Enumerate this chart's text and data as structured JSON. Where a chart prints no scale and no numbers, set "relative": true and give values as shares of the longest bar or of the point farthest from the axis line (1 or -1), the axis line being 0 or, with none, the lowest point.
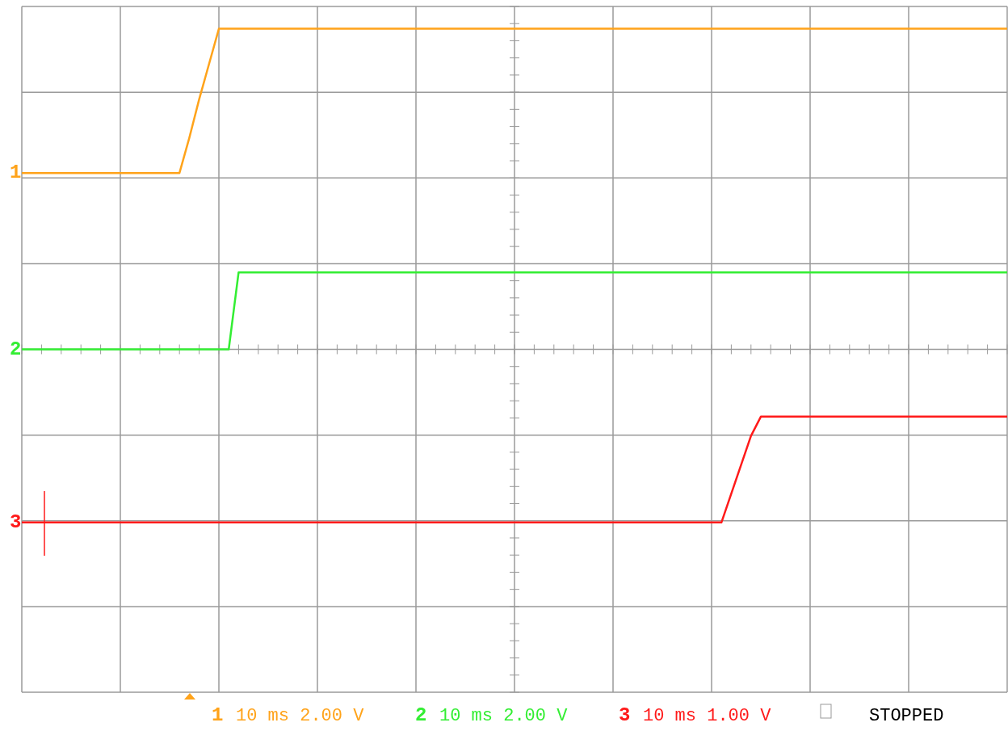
{
  "chart_data": {
    "type": "line",
    "relative": true,
    "grid": true,
    "categories": [
      null,
      null,
      null,
      null,
      null,
      null,
      null,
      null,
      null,
      null,
      null,
      null,
      null,
      null,
      null,
      null,
      null,
      null,
      null,
      null,
      null,
      null,
      null,
      null,
      null,
      null,
      null,
      null,
      null,
      null,
      null,
      null,
      null,
      null,
      null,
      null,
      null,
      null,
      null,
      null,
      null,
      null,
      null,
      null,
      null,
      null,
      null,
      null,
      null,
      null,
      null,
      null,
      null,
      null,
      null,
      null,
      null,
      null,
      null,
      null,
      null,
      null,
      null,
      null,
      null,
      null,
      null,
      null,
      null,
      null,
      null,
      null,
      null,
      null,
      null,
      null,
      null,
      null,
      null,
      null,
      null,
      null,
      null,
      null,
      null,
      null,
      null,
      null,
      null,
      null,
      null,
      null,
      null,
      null,
      null,
      null,
      null,
      null,
      null,
      null,
      null
    ],
    "series": [
      {
        "name": "1",
        "color": "#ffa31a",
        "values": [
          0.55,
          0.55,
          0.55,
          0.55,
          0.55,
          0.55,
          0.55,
          0.55,
          0.55,
          0.55,
          0.55,
          0.55,
          0.55,
          0.55,
          0.55,
          0.55,
          0.55,
          0.66,
          0.78,
          0.89,
          1,
          1,
          1,
          1,
          1,
          1,
          1,
          1,
          1,
          1,
          1,
          1,
          1,
          1,
          1,
          1,
          1,
          1,
          1,
          1,
          1,
          1,
          1,
          1,
          1,
          1,
          1,
          1,
          1,
          1,
          1,
          1,
          1,
          1,
          1,
          1,
          1,
          1,
          1,
          1,
          1,
          1,
          1,
          1,
          1,
          1,
          1,
          1,
          1,
          1,
          1,
          1,
          1,
          1,
          1,
          1,
          1,
          1,
          1,
          1,
          1,
          1,
          1,
          1,
          1,
          1,
          1,
          1,
          1,
          1,
          1,
          1,
          1,
          1,
          1,
          1,
          1,
          1,
          1,
          1,
          1
        ]
      },
      {
        "name": "2",
        "color": "#33ee33",
        "values": [
          0,
          0,
          0,
          0,
          0,
          0,
          0,
          0,
          0,
          0,
          0,
          0,
          0,
          0,
          0,
          0,
          0,
          0,
          0,
          0,
          0,
          0,
          0.24,
          0.24,
          0.24,
          0.24,
          0.24,
          0.24,
          0.24,
          0.24,
          0.24,
          0.24,
          0.24,
          0.24,
          0.24,
          0.24,
          0.24,
          0.24,
          0.24,
          0.24,
          0.24,
          0.24,
          0.24,
          0.24,
          0.24,
          0.24,
          0.24,
          0.24,
          0.24,
          0.24,
          0.24,
          0.24,
          0.24,
          0.24,
          0.24,
          0.24,
          0.24,
          0.24,
          0.24,
          0.24,
          0.24,
          0.24,
          0.24,
          0.24,
          0.24,
          0.24,
          0.24,
          0.24,
          0.24,
          0.24,
          0.24,
          0.24,
          0.24,
          0.24,
          0.24,
          0.24,
          0.24,
          0.24,
          0.24,
          0.24,
          0.24,
          0.24,
          0.24,
          0.24,
          0.24,
          0.24,
          0.24,
          0.24,
          0.24,
          0.24,
          0.24,
          0.24,
          0.24,
          0.24,
          0.24,
          0.24,
          0.24,
          0.24,
          0.24,
          0.24,
          0.24
        ]
      },
      {
        "name": "3",
        "color": "#ff1a1a",
        "values": [
          -0.54,
          -0.54,
          -0.54,
          -0.54,
          -0.54,
          -0.54,
          -0.54,
          -0.54,
          -0.54,
          -0.54,
          -0.54,
          -0.54,
          -0.54,
          -0.54,
          -0.54,
          -0.54,
          -0.54,
          -0.54,
          -0.54,
          -0.54,
          -0.54,
          -0.54,
          -0.54,
          -0.54,
          -0.54,
          -0.54,
          -0.54,
          -0.54,
          -0.54,
          -0.54,
          -0.54,
          -0.54,
          -0.54,
          -0.54,
          -0.54,
          -0.54,
          -0.54,
          -0.54,
          -0.54,
          -0.54,
          -0.54,
          -0.54,
          -0.54,
          -0.54,
          -0.54,
          -0.54,
          -0.54,
          -0.54,
          -0.54,
          -0.54,
          -0.54,
          -0.54,
          -0.54,
          -0.54,
          -0.54,
          -0.54,
          -0.54,
          -0.54,
          -0.54,
          -0.54,
          -0.54,
          -0.54,
          -0.54,
          -0.54,
          -0.54,
          -0.54,
          -0.54,
          -0.54,
          -0.54,
          -0.54,
          -0.54,
          -0.54,
          -0.45,
          -0.36,
          -0.27,
          -0.21,
          -0.21,
          -0.21,
          -0.21,
          -0.21,
          -0.21,
          -0.21,
          -0.21,
          -0.21,
          -0.21,
          -0.21,
          -0.21,
          -0.21,
          -0.21,
          -0.21,
          -0.21,
          -0.21,
          -0.21,
          -0.21,
          -0.21,
          -0.21,
          -0.21,
          -0.21,
          -0.21,
          -0.21,
          -0.21
        ]
      }
    ],
    "annotations": [
      "10 ms 2.00 V",
      "10 ms 2.00 V",
      "10 ms 1.00 V",
      "STOPPED"
    ]
  }
}
